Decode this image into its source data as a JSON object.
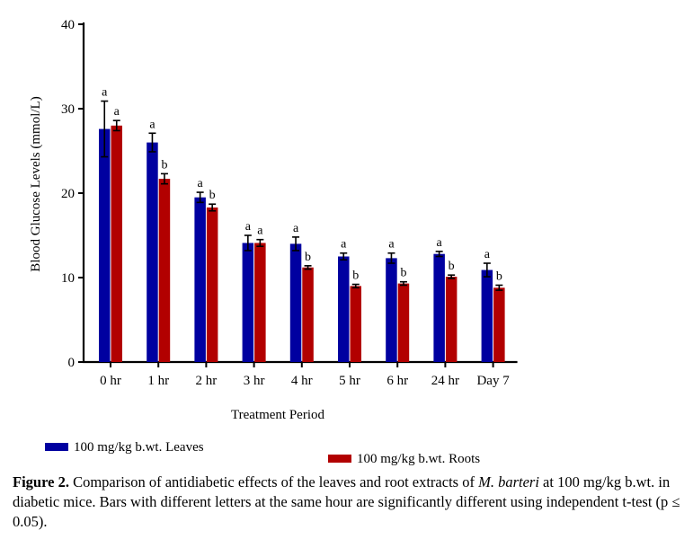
{
  "chart_data": {
    "type": "bar",
    "title": "",
    "xlabel": "Treatment Period",
    "ylabel": "Blood Glucose Levels (mmol/L)",
    "ylim": [
      0,
      40
    ],
    "yticks": [
      0,
      10,
      20,
      30,
      40
    ],
    "categories": [
      "0 hr",
      "1 hr",
      "2 hr",
      "3 hr",
      "4 hr",
      "5 hr",
      "6 hr",
      "24 hr",
      "Day 7"
    ],
    "series": [
      {
        "name": "100 mg/kg b.wt. Leaves",
        "color": "#0000A0",
        "values": [
          27.6,
          26.0,
          19.5,
          14.1,
          14.0,
          12.5,
          12.3,
          12.8,
          10.9
        ],
        "errors": [
          3.3,
          1.1,
          0.6,
          0.9,
          0.8,
          0.4,
          0.6,
          0.3,
          0.8
        ],
        "letters": [
          "a",
          "a",
          "a",
          "a",
          "a",
          "a",
          "a",
          "a",
          "a"
        ]
      },
      {
        "name": "100 mg/kg b.wt. Roots",
        "color": "#B20000",
        "values": [
          28.0,
          21.7,
          18.3,
          14.1,
          11.2,
          9.0,
          9.3,
          10.1,
          8.8
        ],
        "errors": [
          0.6,
          0.6,
          0.4,
          0.4,
          0.2,
          0.2,
          0.2,
          0.2,
          0.3
        ],
        "letters": [
          "a",
          "b",
          "b",
          "a",
          "b",
          "b",
          "b",
          "b",
          "b"
        ]
      }
    ],
    "grid": false,
    "legend_position": "bottom-left"
  },
  "caption": {
    "label": "Figure 2.",
    "text_before": " Comparison of antidiabetic effects of the leaves and root extracts of ",
    "species": "M. barteri",
    "text_after": " at 100 mg/kg b.wt. in diabetic mice. Bars with different letters at the same hour are significantly different using independent t-test (p ≤ 0.05)."
  }
}
